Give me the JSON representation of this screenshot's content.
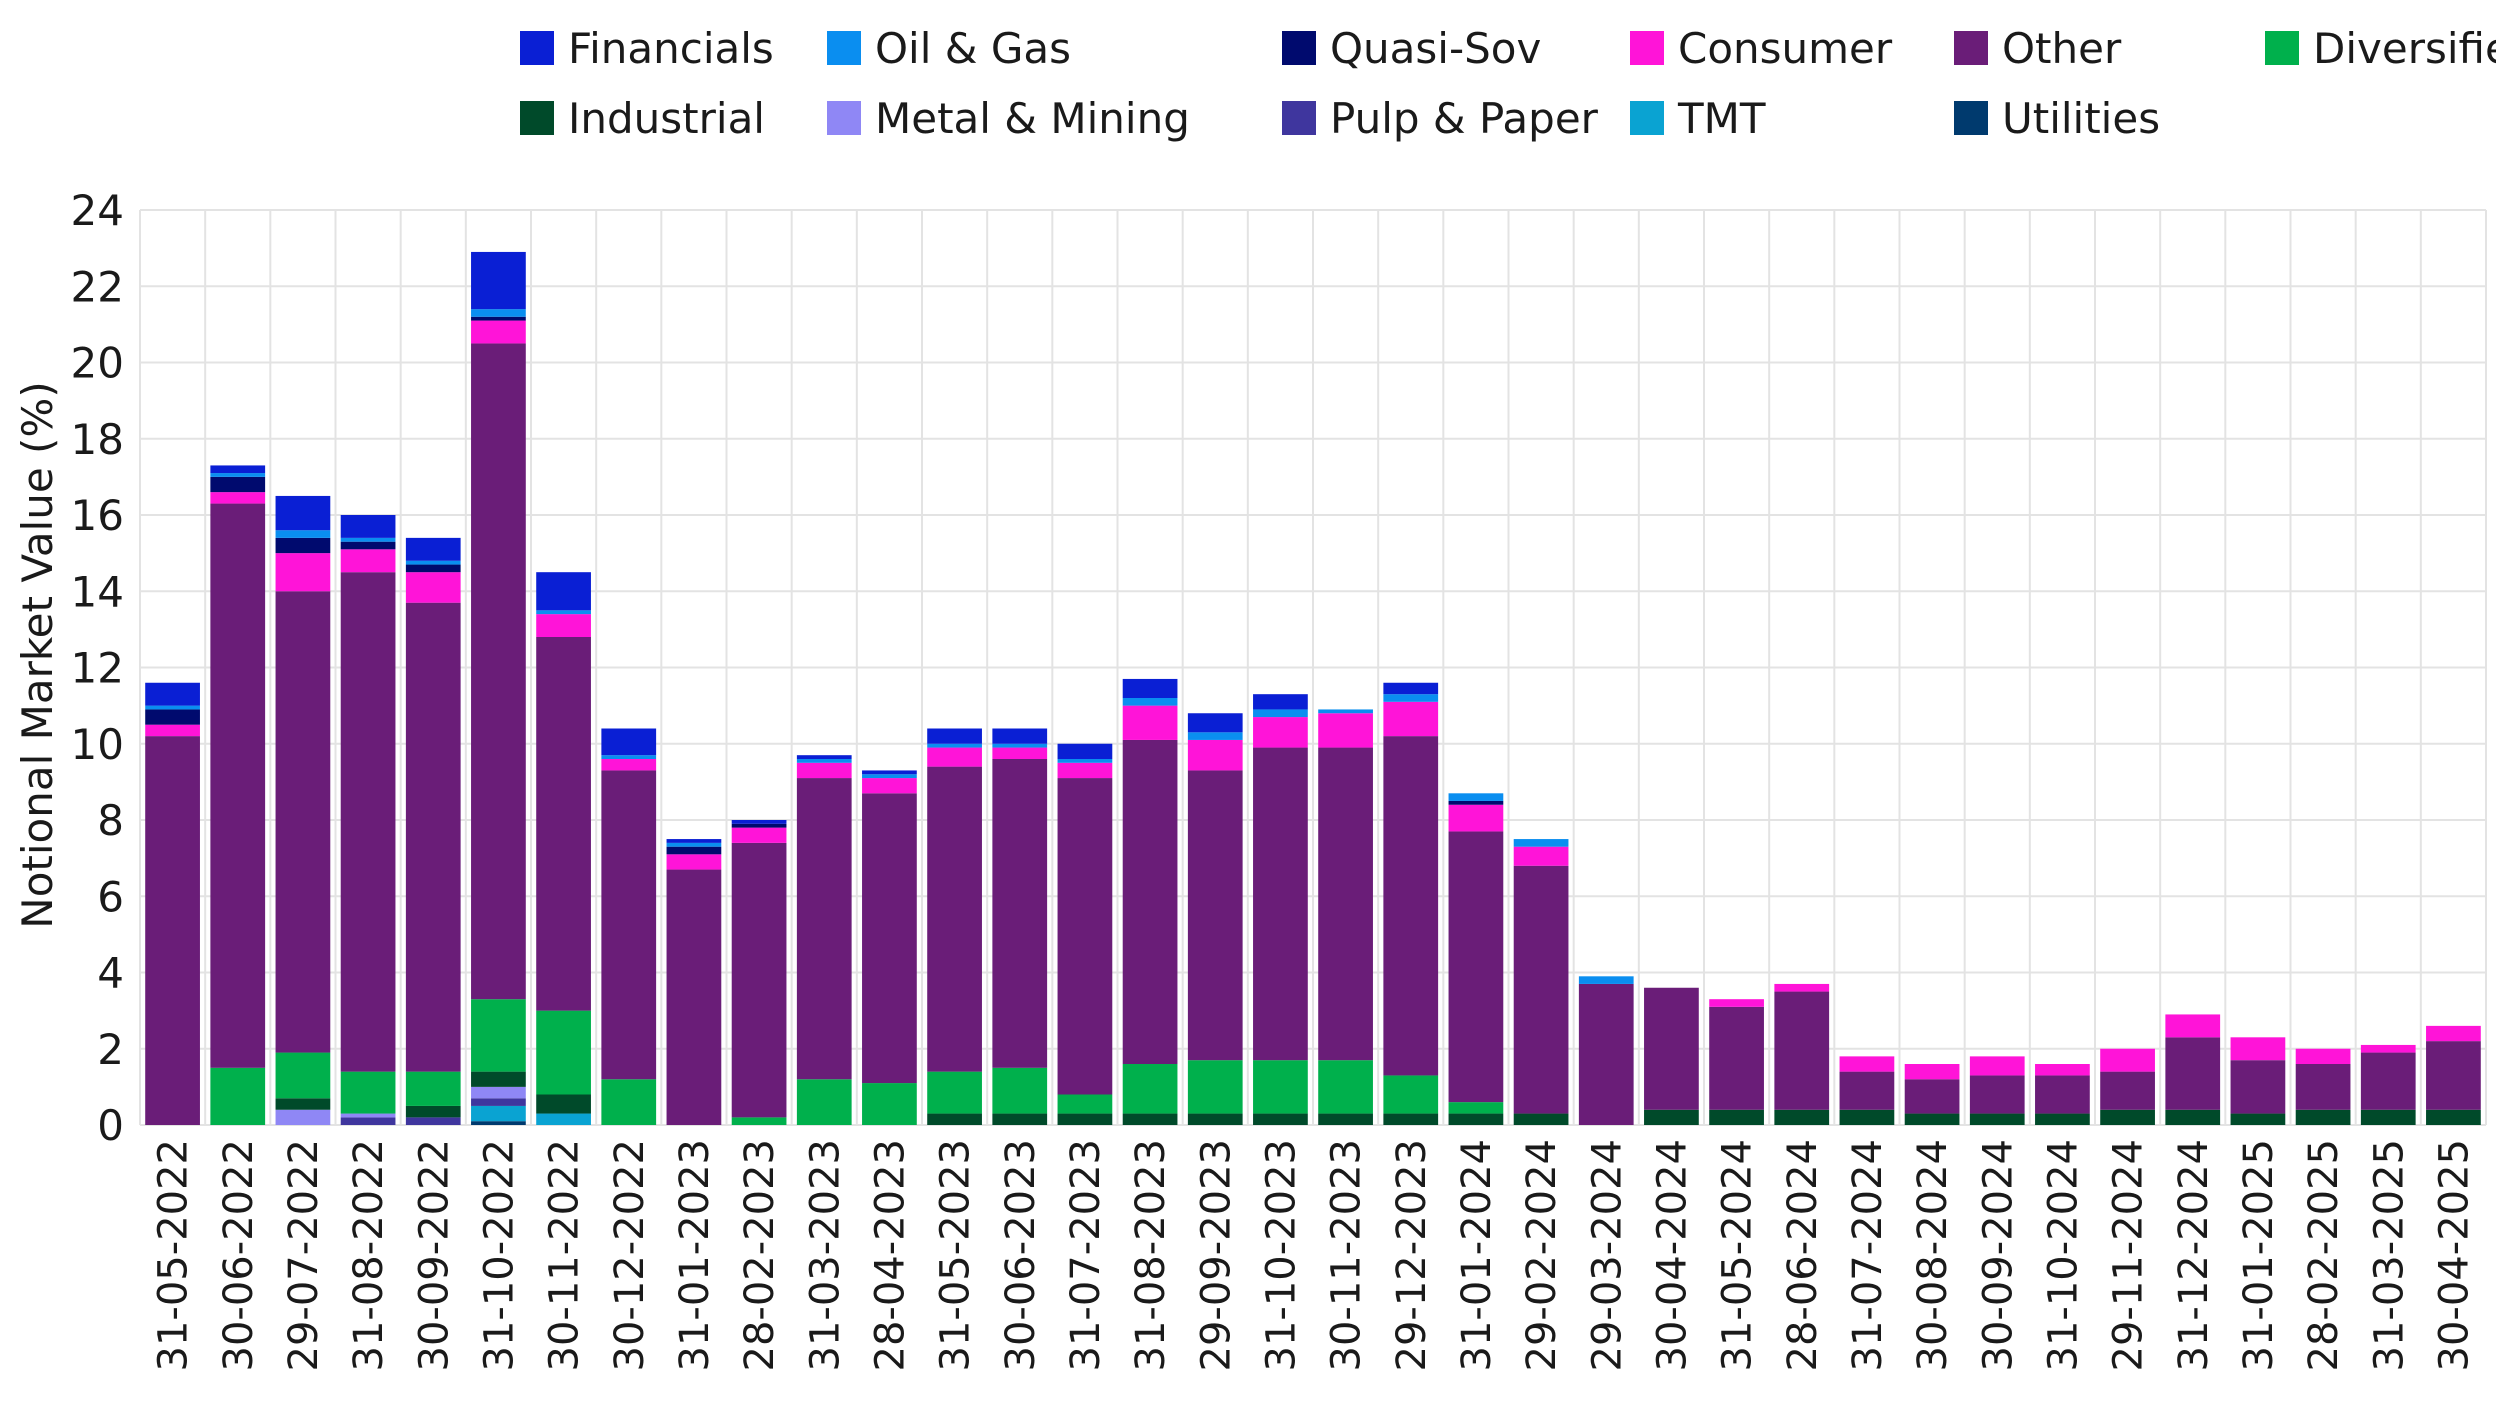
{
  "chart_data": {
    "type": "bar",
    "stacked": true,
    "title": "",
    "xlabel": "",
    "ylabel": "Notional Market Value (%)",
    "ylim": [
      0,
      24
    ],
    "yticks": [
      0,
      2,
      4,
      6,
      8,
      10,
      12,
      14,
      16,
      18,
      20,
      22,
      24
    ],
    "grid": true,
    "legend_position": "top",
    "categories": [
      "31-05-2022",
      "30-06-2022",
      "29-07-2022",
      "31-08-2022",
      "30-09-2022",
      "31-10-2022",
      "30-11-2022",
      "30-12-2022",
      "31-01-2023",
      "28-02-2023",
      "31-03-2023",
      "28-04-2023",
      "31-05-2023",
      "30-06-2023",
      "31-07-2023",
      "31-08-2023",
      "29-09-2023",
      "31-10-2023",
      "30-11-2023",
      "29-12-2023",
      "31-01-2024",
      "29-02-2024",
      "29-03-2024",
      "30-04-2024",
      "31-05-2024",
      "28-06-2024",
      "31-07-2024",
      "30-08-2024",
      "30-09-2024",
      "31-10-2024",
      "29-11-2024",
      "31-12-2024",
      "31-01-2025",
      "28-02-2025",
      "31-03-2025",
      "30-04-2025"
    ],
    "legend": [
      {
        "name": "Financials",
        "color": "#0a1fd4"
      },
      {
        "name": "Oil & Gas",
        "color": "#0a8ef0"
      },
      {
        "name": "Quasi-Sov",
        "color": "#000a6e"
      },
      {
        "name": "Consumer",
        "color": "#ff14d8"
      },
      {
        "name": "Other",
        "color": "#6a1d78"
      },
      {
        "name": "Diversified",
        "color": "#00b04c"
      },
      {
        "name": "Industrial",
        "color": "#004a2a"
      },
      {
        "name": "Metal & Mining",
        "color": "#8f87f5"
      },
      {
        "name": "Pulp & Paper",
        "color": "#3f369e"
      },
      {
        "name": "TMT",
        "color": "#0aa3d2"
      },
      {
        "name": "Utilities",
        "color": "#003a6e"
      }
    ],
    "series": [
      {
        "name": "Utilities",
        "color": "#003a6e",
        "values": [
          0,
          0,
          0,
          0,
          0,
          0.1,
          0,
          0,
          0,
          0,
          0,
          0,
          0,
          0,
          0,
          0,
          0,
          0,
          0,
          0,
          0,
          0,
          0,
          0,
          0,
          0,
          0,
          0,
          0,
          0,
          0,
          0,
          0,
          0,
          0,
          0
        ]
      },
      {
        "name": "TMT",
        "color": "#0aa3d2",
        "values": [
          0,
          0,
          0,
          0,
          0,
          0.4,
          0.3,
          0,
          0,
          0,
          0,
          0,
          0,
          0,
          0,
          0,
          0,
          0,
          0,
          0,
          0,
          0,
          0,
          0,
          0,
          0,
          0,
          0,
          0,
          0,
          0,
          0,
          0,
          0,
          0,
          0
        ]
      },
      {
        "name": "Pulp & Paper",
        "color": "#3f369e",
        "values": [
          0,
          0,
          0,
          0.2,
          0.2,
          0.2,
          0,
          0,
          0,
          0,
          0,
          0,
          0,
          0,
          0,
          0,
          0,
          0,
          0,
          0,
          0,
          0,
          0,
          0,
          0,
          0,
          0,
          0,
          0,
          0,
          0,
          0,
          0,
          0,
          0,
          0
        ]
      },
      {
        "name": "Metal & Mining",
        "color": "#8f87f5",
        "values": [
          0,
          0,
          0.4,
          0.1,
          0,
          0.3,
          0,
          0,
          0,
          0,
          0,
          0,
          0,
          0,
          0,
          0,
          0,
          0,
          0,
          0,
          0,
          0,
          0,
          0,
          0,
          0,
          0,
          0,
          0,
          0,
          0,
          0,
          0,
          0,
          0,
          0
        ]
      },
      {
        "name": "Industrial",
        "color": "#004a2a",
        "values": [
          0,
          0,
          0.3,
          0,
          0.3,
          0.4,
          0.5,
          0,
          0,
          0,
          0,
          0,
          0.3,
          0.3,
          0.3,
          0.3,
          0.3,
          0.3,
          0.3,
          0.3,
          0.3,
          0.3,
          0,
          0.4,
          0.4,
          0.4,
          0.4,
          0.3,
          0.3,
          0.3,
          0.4,
          0.4,
          0.3,
          0.4,
          0.4,
          0.4
        ]
      },
      {
        "name": "Diversified",
        "color": "#00b04c",
        "values": [
          0,
          1.5,
          1.2,
          1.1,
          0.9,
          1.9,
          2.2,
          1.2,
          0,
          0.2,
          1.2,
          1.1,
          1.1,
          1.2,
          0.5,
          1.3,
          1.4,
          1.4,
          1.4,
          1.0,
          0.3,
          0,
          0,
          0,
          0,
          0,
          0,
          0,
          0,
          0,
          0,
          0,
          0,
          0,
          0,
          0
        ]
      },
      {
        "name": "Other",
        "color": "#6a1d78",
        "values": [
          10.2,
          14.8,
          12.1,
          13.1,
          12.3,
          17.2,
          9.8,
          8.1,
          6.7,
          7.2,
          7.9,
          7.6,
          8.0,
          8.1,
          8.3,
          8.5,
          7.6,
          8.2,
          8.2,
          8.9,
          7.1,
          6.5,
          3.7,
          3.2,
          2.7,
          3.1,
          1.0,
          0.9,
          1.0,
          1.0,
          1.0,
          1.9,
          1.4,
          1.2,
          1.5,
          1.8
        ]
      },
      {
        "name": "Consumer",
        "color": "#ff14d8",
        "values": [
          0.3,
          0.3,
          1.0,
          0.6,
          0.8,
          0.6,
          0.6,
          0.3,
          0.4,
          0.4,
          0.4,
          0.4,
          0.5,
          0.3,
          0.4,
          0.9,
          0.8,
          0.8,
          0.9,
          0.9,
          0.7,
          0.5,
          0,
          0,
          0.2,
          0.2,
          0.4,
          0.4,
          0.5,
          0.3,
          0.6,
          0.6,
          0.6,
          0.4,
          0.2,
          0.4
        ]
      },
      {
        "name": "Quasi-Sov",
        "color": "#000a6e",
        "values": [
          0.4,
          0.4,
          0.4,
          0.2,
          0.2,
          0.1,
          0,
          0,
          0.2,
          0.1,
          0,
          0,
          0,
          0,
          0,
          0,
          0,
          0,
          0,
          0,
          0.1,
          0,
          0,
          0,
          0,
          0,
          0,
          0,
          0,
          0,
          0,
          0,
          0,
          0,
          0,
          0
        ]
      },
      {
        "name": "Oil & Gas",
        "color": "#0a8ef0",
        "values": [
          0.1,
          0.1,
          0.2,
          0.1,
          0.1,
          0.2,
          0.1,
          0.1,
          0.1,
          0,
          0.1,
          0.1,
          0.1,
          0.1,
          0.1,
          0.2,
          0.2,
          0.2,
          0.1,
          0.2,
          0.2,
          0.2,
          0.2,
          0,
          0,
          0,
          0,
          0,
          0,
          0,
          0,
          0,
          0,
          0,
          0,
          0
        ]
      },
      {
        "name": "Financials",
        "color": "#0a1fd4",
        "values": [
          0.6,
          0.2,
          0.9,
          0.6,
          0.6,
          1.5,
          1.0,
          0.7,
          0.1,
          0.1,
          0.1,
          0.1,
          0.4,
          0.4,
          0.4,
          0.5,
          0.5,
          0.4,
          0,
          0.3,
          0,
          0,
          0,
          0,
          0,
          0,
          0,
          0,
          0,
          0,
          0,
          0,
          0,
          0,
          0,
          0
        ]
      }
    ]
  }
}
